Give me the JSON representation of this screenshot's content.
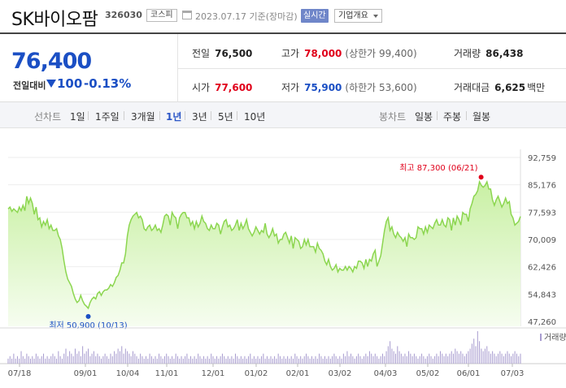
{
  "header": {
    "stock_name": "SK바이오팜",
    "stock_code": "326030",
    "market": "코스피",
    "date_info": "2023.07.17  기준(장마감)",
    "realtime_label": "실시간",
    "company_info_label": "기업개요"
  },
  "price": {
    "current": "76,400",
    "change_label": "전일대비",
    "change_value": "100",
    "change_percent": "-0.13%"
  },
  "stats": {
    "prev_close": {
      "label": "전일",
      "value": "76,500"
    },
    "high": {
      "label": "고가",
      "value": "78,000",
      "sub": "(상한가 99,400)"
    },
    "volume": {
      "label": "거래량",
      "value": "86,438"
    },
    "open": {
      "label": "시가",
      "value": "77,600"
    },
    "low": {
      "label": "저가",
      "value": "75,900",
      "sub": "(하한가 53,600)"
    },
    "turnover": {
      "label": "거래대금",
      "value": "6,625",
      "unit": "백만"
    }
  },
  "period_bar": {
    "line_title": "선차트",
    "line_periods": [
      "1일",
      "1주일",
      "3개월",
      "1년",
      "3년",
      "5년",
      "10년"
    ],
    "active_period": "1년",
    "candle_title": "봉차트",
    "candle_periods": [
      "일봉",
      "주봉",
      "월봉"
    ]
  },
  "colors": {
    "accent_blue": "#1b4fc4",
    "accent_red": "#e0001a",
    "line_green": "#8cd650",
    "volume_purple": "#a79bcf"
  },
  "chart_data": {
    "type": "area",
    "y_ticks": [
      "92,759",
      "85,176",
      "77,593",
      "70,009",
      "62,426",
      "54,843",
      "47,260"
    ],
    "ylim": [
      47260,
      92759
    ],
    "x_ticks": [
      "07/18",
      "09/01",
      "10/04",
      "11/01",
      "12/01",
      "01/02",
      "02/01",
      "03/02",
      "04/03",
      "05/02",
      "06/01",
      "07/03"
    ],
    "series": [
      {
        "values": [
          78500,
          79000,
          77800,
          78500,
          78000,
          77500,
          79000,
          78000,
          79500,
          78000,
          82000,
          80000,
          81500,
          80000,
          77000,
          79000,
          75500,
          76000,
          73500,
          75000,
          74000,
          75500,
          73000,
          74000,
          72500,
          72500,
          73000,
          71000,
          70000,
          67500,
          64000,
          61000,
          59000,
          58000,
          57000,
          55000,
          53500,
          52500,
          53000,
          54500,
          53000,
          52000,
          51500,
          50900,
          52500,
          53500,
          54000,
          53500,
          55000,
          55500,
          54500,
          55500,
          56000,
          56000,
          56500,
          57500,
          57000,
          58000,
          59500,
          60000,
          61500,
          63500,
          63500,
          66000,
          71000,
          74000,
          75500,
          76500,
          77000,
          77500,
          76000,
          76500,
          75500,
          73000,
          72500,
          73500,
          74000,
          72500,
          73000,
          74000,
          72500,
          73000,
          72000,
          74000,
          76500,
          77000,
          76500,
          74000,
          77500,
          76500,
          76000,
          73000,
          76000,
          77000,
          77500,
          77500,
          76000,
          76000,
          74000,
          75000,
          73000,
          75000,
          73500,
          74500,
          76500,
          75000,
          74500,
          73000,
          72500,
          74000,
          73000,
          73000,
          74500,
          74000,
          71500,
          73500,
          75000,
          75500,
          73500,
          74000,
          72500,
          73000,
          74000,
          75500,
          72500,
          74500,
          73000,
          74000,
          75500,
          73000,
          72000,
          71000,
          72000,
          73500,
          72500,
          71500,
          72500,
          72000,
          74500,
          71500,
          70500,
          71500,
          73000,
          71000,
          71500,
          69000,
          70000,
          70000,
          71500,
          72000,
          70500,
          69000,
          71000,
          67500,
          70500,
          70000,
          69500,
          67500,
          68000,
          70000,
          68500,
          70000,
          68000,
          68000,
          68000,
          66500,
          69000,
          67500,
          67000,
          66000,
          64000,
          63000,
          64500,
          62500,
          61500,
          62000,
          63000,
          61000,
          62000,
          61500,
          61500,
          62500,
          61500,
          62500,
          62000,
          61000,
          62500,
          62000,
          64000,
          64000,
          63500,
          62000,
          64500,
          62500,
          64500,
          64000,
          66000,
          67000,
          62500,
          64000,
          65500,
          69000,
          72500,
          75000,
          76000,
          72500,
          73500,
          71500,
          70500,
          72000,
          71000,
          70500,
          69500,
          70500,
          68000,
          71500,
          70500,
          70500,
          70000,
          70500,
          73500,
          73000,
          73000,
          71500,
          73500,
          72000,
          74000,
          73500,
          73000,
          74500,
          75500,
          74000,
          74000,
          75500,
          74000,
          73500,
          76000,
          75500,
          72500,
          76000,
          74000,
          76500,
          75500,
          74000,
          77500,
          77000,
          77000,
          75000,
          78500,
          80000,
          82000,
          82500,
          83500,
          86000,
          85000,
          84500,
          85000,
          86000,
          84000,
          84000,
          81000,
          79500,
          81000,
          82000,
          80500,
          79000,
          80000,
          81500,
          80000,
          80500,
          77000,
          76000,
          74000,
          74500,
          75000,
          76400
        ],
        "volume": [
          2,
          3,
          2,
          4,
          2,
          3,
          2,
          5,
          3,
          2,
          4,
          3,
          2,
          3,
          2,
          4,
          3,
          2,
          3,
          4,
          2,
          3,
          2,
          3,
          4,
          3,
          2,
          5,
          3,
          2,
          4,
          6,
          3,
          5,
          4,
          3,
          6,
          4,
          5,
          3,
          7,
          4,
          5,
          6,
          3,
          4,
          5,
          3,
          4,
          3,
          2,
          3,
          4,
          3,
          2,
          4,
          3,
          5,
          4,
          6,
          5,
          7,
          4,
          6,
          5,
          4,
          3,
          5,
          4,
          3,
          2,
          4,
          3,
          2,
          3,
          2,
          4,
          3,
          2,
          3,
          2,
          4,
          3,
          2,
          3,
          4,
          3,
          2,
          3,
          2,
          4,
          3,
          2,
          3,
          2,
          3,
          4,
          2,
          3,
          2,
          3,
          2,
          4,
          3,
          2,
          3,
          2,
          3,
          2,
          4,
          3,
          2,
          3,
          2,
          3,
          4,
          3,
          2,
          3,
          2,
          3,
          2,
          4,
          3,
          2,
          3,
          2,
          3,
          2,
          3,
          4,
          2,
          3,
          2,
          3,
          2,
          3,
          4,
          2,
          3,
          2,
          3,
          2,
          3,
          2,
          4,
          3,
          2,
          3,
          2,
          3,
          2,
          3,
          2,
          4,
          3,
          2,
          3,
          2,
          3,
          4,
          3,
          2,
          3,
          2,
          3,
          2,
          4,
          3,
          2,
          3,
          2,
          3,
          2,
          3,
          4,
          3,
          2,
          3,
          2,
          4,
          3,
          5,
          3,
          4,
          3,
          2,
          3,
          4,
          3,
          2,
          3,
          4,
          3,
          5,
          4,
          3,
          4,
          3,
          2,
          3,
          4,
          3,
          5,
          7,
          9,
          6,
          5,
          4,
          7,
          5,
          4,
          3,
          4,
          3,
          5,
          4,
          3,
          4,
          3,
          2,
          3,
          4,
          3,
          2,
          3,
          4,
          3,
          2,
          3,
          4,
          3,
          5,
          4,
          3,
          4,
          3,
          4,
          5,
          4,
          6,
          5,
          4,
          5,
          4,
          3,
          4,
          5,
          6,
          8,
          10,
          7,
          13,
          9,
          6,
          5,
          6,
          7,
          5,
          4,
          5,
          4,
          3,
          4,
          5,
          4,
          3,
          4,
          5,
          4,
          3,
          4,
          5,
          4,
          3,
          4
        ]
      }
    ],
    "annotations": {
      "max_text": "최고 87,300 (06/21)",
      "max_value": 87300,
      "min_text": "최저 50,900 (10/13)",
      "min_value": 50900
    },
    "volume_legend": "거래량",
    "grid": true
  }
}
